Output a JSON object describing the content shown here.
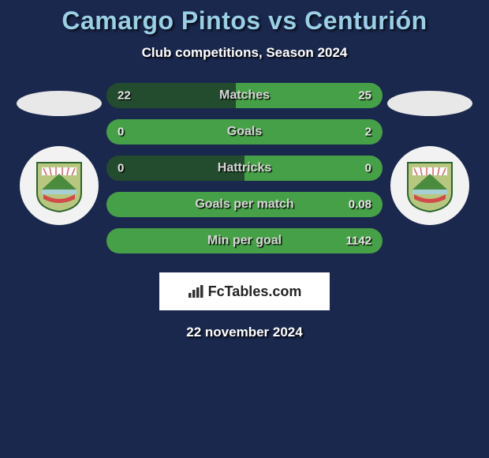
{
  "title": "Camargo Pintos vs Centurión",
  "subtitle": "Club competitions, Season 2024",
  "date": "22 november 2024",
  "brand": "FcTables.com",
  "colors": {
    "background": "#1a284e",
    "title": "#9acfe6",
    "bar_left": "#234c2e",
    "bar_right": "#46a047",
    "bar_text": "#d6d6d6",
    "brand_bg": "#ffffff",
    "brand_text": "#222222"
  },
  "bars": [
    {
      "label": "Matches",
      "left_val": "22",
      "right_val": "25",
      "left_pct": 46.8,
      "right_pct": 53.2
    },
    {
      "label": "Goals",
      "left_val": "0",
      "right_val": "2",
      "left_pct": 0,
      "right_pct": 100
    },
    {
      "label": "Hattricks",
      "left_val": "0",
      "right_val": "0",
      "left_pct": 50,
      "right_pct": 50
    },
    {
      "label": "Goals per match",
      "left_val": "",
      "right_val": "0.08",
      "left_pct": 0,
      "right_pct": 100
    },
    {
      "label": "Min per goal",
      "left_val": "",
      "right_val": "1142",
      "left_pct": 0,
      "right_pct": 100
    }
  ],
  "crest_colors": {
    "outer": "#b8c77f",
    "mountain": "#4a8b3e",
    "sun_stripes": "#d86a6a",
    "banner": "#a7d0d6",
    "border": "#2b662e"
  }
}
